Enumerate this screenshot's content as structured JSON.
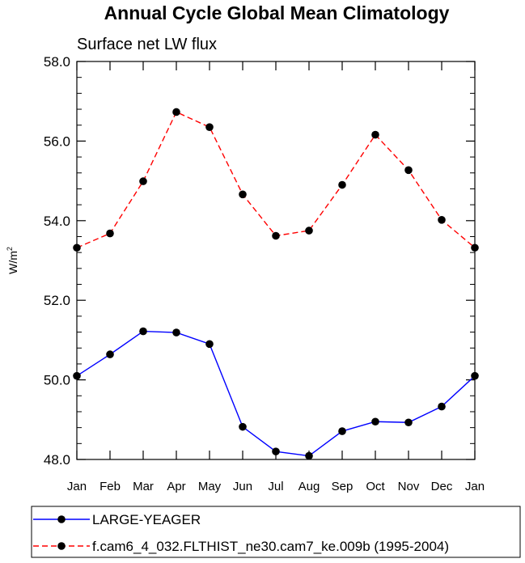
{
  "chart_data": {
    "type": "line",
    "title": "Annual Cycle Global Mean Climatology",
    "subtitle": "Surface net LW flux",
    "xlabel": "",
    "ylabel": "W/m",
    "ylabel_superscript": "2",
    "categories": [
      "Jan",
      "Feb",
      "Mar",
      "Apr",
      "May",
      "Jun",
      "Jul",
      "Aug",
      "Sep",
      "Oct",
      "Nov",
      "Dec",
      "Jan"
    ],
    "ylim": [
      48.0,
      58.0
    ],
    "yticks": [
      "48.0",
      "50.0",
      "52.0",
      "54.0",
      "56.0",
      "58.0"
    ],
    "grid": false,
    "legend_position": "bottom",
    "series": [
      {
        "name": "LARGE-YEAGER",
        "color": "#0000ff",
        "line_style": "solid",
        "marker": "filled-circle",
        "values": [
          50.1,
          50.64,
          51.22,
          51.19,
          50.9,
          48.82,
          48.2,
          48.09,
          48.71,
          48.95,
          48.93,
          49.33,
          50.1
        ]
      },
      {
        "name": "f.cam6_4_032.FLTHIST_ne30.cam7_ke.009b (1995-2004)",
        "color": "#ff0000",
        "line_style": "dashed",
        "marker": "filled-circle",
        "values": [
          53.32,
          53.68,
          54.99,
          56.73,
          56.35,
          54.66,
          53.62,
          53.75,
          54.9,
          56.16,
          55.27,
          54.02,
          53.32
        ]
      }
    ]
  }
}
